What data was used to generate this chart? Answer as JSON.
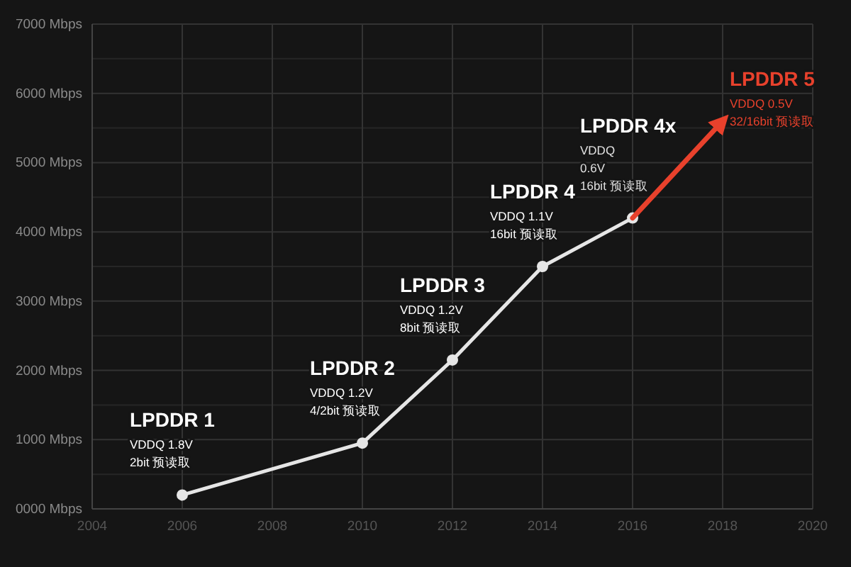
{
  "chart_data": {
    "type": "line",
    "xlim": [
      2004,
      2020
    ],
    "ylim": [
      0,
      7000
    ],
    "xticks": [
      2004,
      2006,
      2008,
      2010,
      2012,
      2014,
      2016,
      2018,
      2020
    ],
    "yticks": [
      {
        "value": 0,
        "label": "0000 Mbps"
      },
      {
        "value": 500,
        "label": null
      },
      {
        "value": 1000,
        "label": "1000 Mbps"
      },
      {
        "value": 1500,
        "label": null
      },
      {
        "value": 2000,
        "label": "2000 Mbps"
      },
      {
        "value": 2500,
        "label": null
      },
      {
        "value": 3000,
        "label": "3000 Mbps"
      },
      {
        "value": 3500,
        "label": null
      },
      {
        "value": 4000,
        "label": "4000 Mbps"
      },
      {
        "value": 4500,
        "label": null
      },
      {
        "value": 5000,
        "label": "5000 Mbps"
      },
      {
        "value": 5500,
        "label": null
      },
      {
        "value": 6000,
        "label": "6000 Mbps"
      },
      {
        "value": 6500,
        "label": null
      },
      {
        "value": 7000,
        "label": "7000 Mbps"
      }
    ],
    "grid": true,
    "marker": "circle",
    "line_style": "solid",
    "series": [
      {
        "color": "#e6e6e6",
        "x": [
          2006,
          2010,
          2012,
          2014,
          2016
        ],
        "values": [
          200,
          950,
          2150,
          3500,
          4200
        ]
      },
      {
        "color": "#e8412c",
        "marker": "none",
        "x": [
          2016,
          2018
        ],
        "values": [
          4200,
          5600
        ]
      }
    ],
    "annotations": [
      "**LPDDR 1**\nVDDQ 1.8V\n2bit 预读取",
      "**LPDDR 2**\nVDDQ 1.2V\n4/2bit 预读取",
      "**LPDDR 3**\nVDDQ 1.2V\n8bit 预读取",
      "**LPDDR 4**\nVDDQ 1.1V\n16bit 预读取",
      "**LPDDR 4x**\nVDDQ\n0.6V\n16bit 预读取",
      "**LPDDR 5**\nVDDQ 0.5V\n32/16bit 预读取"
    ]
  }
}
